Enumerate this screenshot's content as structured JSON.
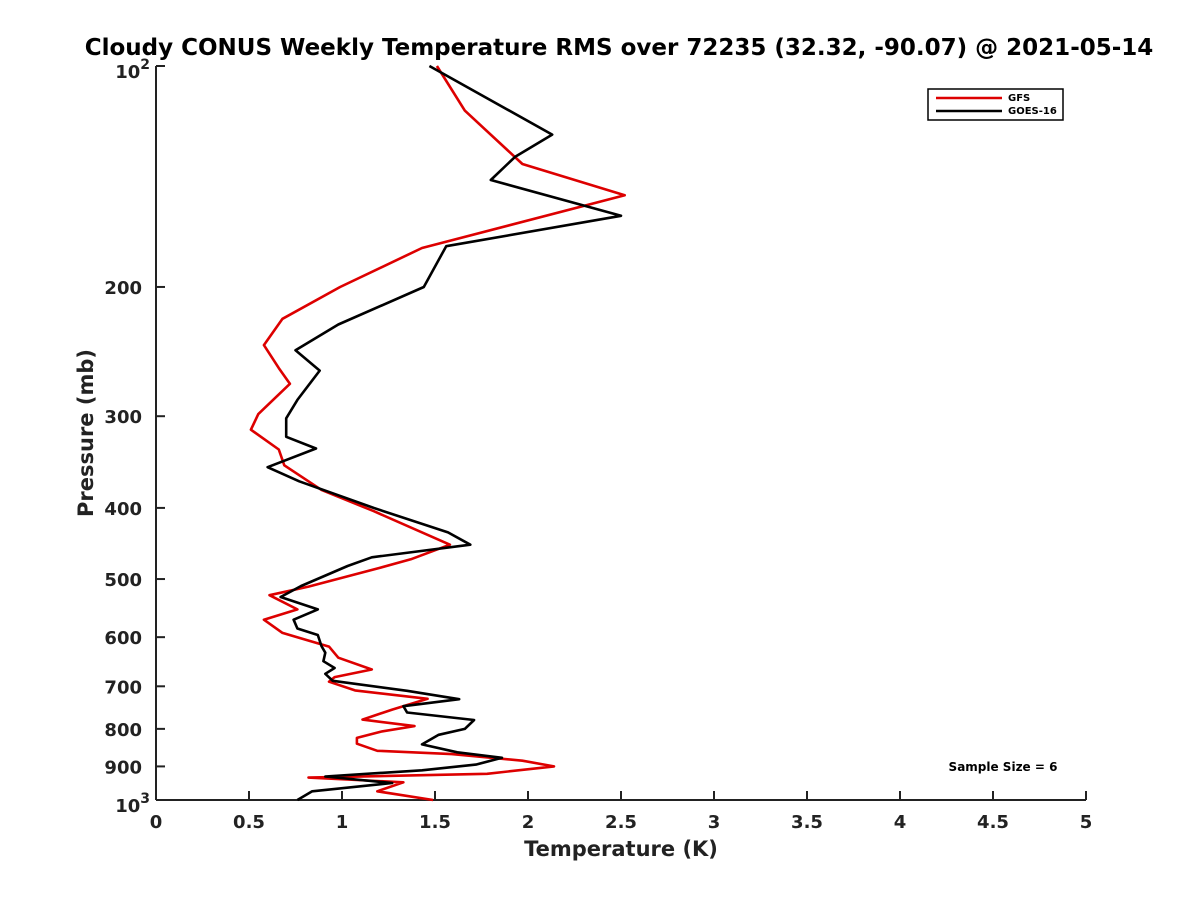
{
  "chart_data": {
    "type": "line",
    "title": "Cloudy CONUS Weekly Temperature RMS over 72235 (32.32, -90.07) @ 2021-05-14",
    "xlabel": "Temperature (K)",
    "ylabel": "Pressure (mb)",
    "xlim": [
      0,
      5
    ],
    "ylim": [
      100,
      1000
    ],
    "y_scale": "log",
    "y_reversed": true,
    "x_ticks": [
      0,
      0.5,
      1,
      1.5,
      2,
      2.5,
      3,
      3.5,
      4,
      4.5,
      5
    ],
    "x_tick_labels": [
      "0",
      "0.5",
      "1",
      "1.5",
      "2",
      "2.5",
      "3",
      "3.5",
      "4",
      "4.5",
      "5"
    ],
    "y_ticks": [
      200,
      300,
      400,
      500,
      600,
      700,
      800,
      900
    ],
    "y_tick_labels": [
      "200",
      "300",
      "400",
      "500",
      "600",
      "700",
      "800",
      "900"
    ],
    "y_end_labels": [
      {
        "value": 100,
        "base": "10",
        "exp": "2"
      },
      {
        "value": 1000,
        "base": "10",
        "exp": "3"
      }
    ],
    "grid": false,
    "legend_position": "top-right",
    "annotation": "Sample Size = 6",
    "series": [
      {
        "name": "GFS",
        "color": "#dd0000",
        "points": [
          [
            1.51,
            100
          ],
          [
            1.66,
            115
          ],
          [
            1.97,
            136
          ],
          [
            2.52,
            150
          ],
          [
            1.43,
            177
          ],
          [
            0.99,
            200
          ],
          [
            0.68,
            221
          ],
          [
            0.58,
            240
          ],
          [
            0.66,
            258
          ],
          [
            0.72,
            271
          ],
          [
            0.55,
            298
          ],
          [
            0.51,
            313
          ],
          [
            0.66,
            333
          ],
          [
            0.69,
            350
          ],
          [
            0.89,
            378
          ],
          [
            1.17,
            404
          ],
          [
            1.58,
            449
          ],
          [
            1.37,
            470
          ],
          [
            1.2,
            483
          ],
          [
            0.82,
            512
          ],
          [
            0.61,
            526
          ],
          [
            0.76,
            550
          ],
          [
            0.58,
            568
          ],
          [
            0.68,
            592
          ],
          [
            0.93,
            618
          ],
          [
            0.98,
            640
          ],
          [
            1.16,
            664
          ],
          [
            0.96,
            680
          ],
          [
            0.93,
            690
          ],
          [
            1.07,
            709
          ],
          [
            1.46,
            728
          ],
          [
            1.27,
            753
          ],
          [
            1.11,
            777
          ],
          [
            1.39,
            793
          ],
          [
            1.21,
            807
          ],
          [
            1.08,
            823
          ],
          [
            1.08,
            838
          ],
          [
            1.19,
            857
          ],
          [
            1.59,
            866
          ],
          [
            1.97,
            884
          ],
          [
            2.14,
            900
          ],
          [
            1.78,
            921
          ],
          [
            0.82,
            932
          ],
          [
            1.33,
            946
          ],
          [
            1.19,
            973
          ],
          [
            1.49,
            1000
          ]
        ]
      },
      {
        "name": "GOES-16",
        "color": "#000000",
        "points": [
          [
            1.47,
            100
          ],
          [
            2.13,
            124
          ],
          [
            1.93,
            133
          ],
          [
            1.8,
            143
          ],
          [
            2.5,
            160
          ],
          [
            1.56,
            176
          ],
          [
            1.44,
            200
          ],
          [
            0.98,
            225
          ],
          [
            0.75,
            244
          ],
          [
            0.88,
            260
          ],
          [
            0.76,
            285
          ],
          [
            0.7,
            302
          ],
          [
            0.7,
            320
          ],
          [
            0.86,
            332
          ],
          [
            0.6,
            352
          ],
          [
            0.77,
            368
          ],
          [
            1.17,
            400
          ],
          [
            1.57,
            432
          ],
          [
            1.69,
            449
          ],
          [
            1.16,
            467
          ],
          [
            1.03,
            480
          ],
          [
            0.78,
            511
          ],
          [
            0.67,
            529
          ],
          [
            0.87,
            550
          ],
          [
            0.74,
            568
          ],
          [
            0.76,
            584
          ],
          [
            0.87,
            596
          ],
          [
            0.89,
            617
          ],
          [
            0.91,
            630
          ],
          [
            0.9,
            647
          ],
          [
            0.96,
            661
          ],
          [
            0.91,
            673
          ],
          [
            0.95,
            688
          ],
          [
            1.35,
            710
          ],
          [
            1.63,
            729
          ],
          [
            1.33,
            745
          ],
          [
            1.35,
            760
          ],
          [
            1.71,
            778
          ],
          [
            1.66,
            800
          ],
          [
            1.52,
            815
          ],
          [
            1.43,
            840
          ],
          [
            1.62,
            861
          ],
          [
            1.86,
            876
          ],
          [
            1.72,
            895
          ],
          [
            1.43,
            911
          ],
          [
            0.91,
            929
          ],
          [
            1.27,
            948
          ],
          [
            0.84,
            973
          ],
          [
            0.76,
            1000
          ]
        ]
      }
    ]
  }
}
